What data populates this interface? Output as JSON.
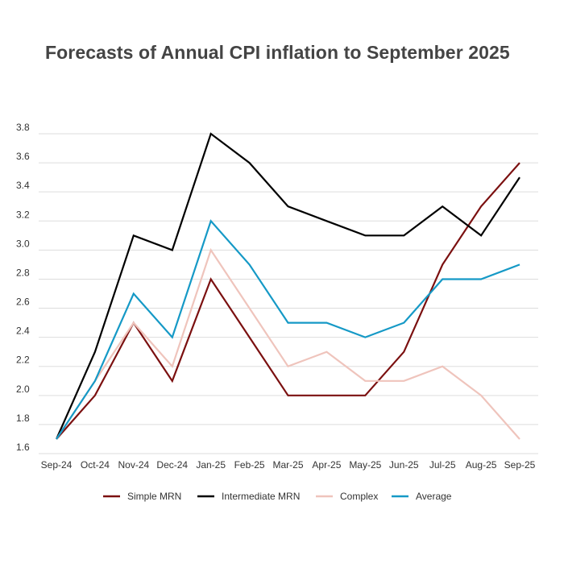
{
  "chart_data": {
    "type": "line",
    "title": "Forecasts of Annual CPI inflation to September 2025",
    "xlabel": "",
    "ylabel": "",
    "categories": [
      "Sep-24",
      "Oct-24",
      "Nov-24",
      "Dec-24",
      "Jan-25",
      "Feb-25",
      "Mar-25",
      "Apr-25",
      "May-25",
      "Jun-25",
      "Jul-25",
      "Aug-25",
      "Sep-25"
    ],
    "ylim": [
      1.6,
      3.8
    ],
    "yticks": [
      "1.6",
      "1.8",
      "2.0",
      "2.2",
      "2.4",
      "2.6",
      "2.8",
      "3.0",
      "3.2",
      "3.4",
      "3.6",
      "3.8"
    ],
    "grid": true,
    "legend_position": "bottom",
    "series": [
      {
        "name": "Simple MRN",
        "color": "#7b1010",
        "values": [
          1.7,
          2.0,
          2.5,
          2.1,
          2.8,
          2.4,
          2.0,
          2.0,
          2.0,
          2.3,
          2.9,
          3.3,
          3.6
        ]
      },
      {
        "name": "Intermediate MRN",
        "color": "#000000",
        "values": [
          1.7,
          2.3,
          3.1,
          3.0,
          3.8,
          3.6,
          3.3,
          3.2,
          3.1,
          3.1,
          3.3,
          3.1,
          3.5
        ]
      },
      {
        "name": "Complex",
        "color": "#efc4bc",
        "values": [
          1.7,
          2.1,
          2.5,
          2.2,
          3.0,
          2.6,
          2.2,
          2.3,
          2.1,
          2.1,
          2.2,
          2.0,
          1.7
        ]
      },
      {
        "name": "Average",
        "color": "#1599c6",
        "values": [
          1.7,
          2.1,
          2.7,
          2.4,
          3.2,
          2.9,
          2.5,
          2.5,
          2.4,
          2.5,
          2.8,
          2.8,
          2.9
        ]
      }
    ]
  }
}
